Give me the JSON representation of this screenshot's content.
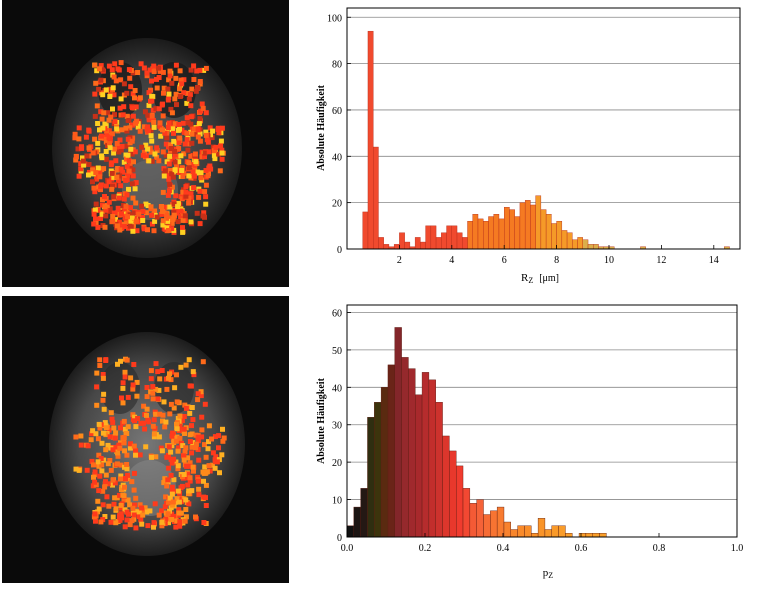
{
  "chart_data": [
    {
      "type": "bar",
      "xlabel": "R",
      "xlabel_sub": "Z",
      "xlabel_unit": "[μm]",
      "ylabel": "Absolute Häufigkeit",
      "xlim": [
        0,
        15
      ],
      "ylim": [
        0,
        104
      ],
      "xticks": [
        "2",
        "4",
        "6",
        "8",
        "10",
        "12",
        "14"
      ],
      "yticks": [
        "0",
        "20",
        "40",
        "60",
        "80",
        "100"
      ],
      "grid": "horizontal",
      "bin_width": 0.2,
      "bins": [
        {
          "x": 0.6,
          "v": 16
        },
        {
          "x": 0.8,
          "v": 94
        },
        {
          "x": 1.0,
          "v": 44
        },
        {
          "x": 1.2,
          "v": 5
        },
        {
          "x": 1.4,
          "v": 2
        },
        {
          "x": 1.6,
          "v": 1
        },
        {
          "x": 1.8,
          "v": 2
        },
        {
          "x": 2.0,
          "v": 7
        },
        {
          "x": 2.2,
          "v": 3
        },
        {
          "x": 2.4,
          "v": 1
        },
        {
          "x": 2.6,
          "v": 5
        },
        {
          "x": 2.8,
          "v": 3
        },
        {
          "x": 3.0,
          "v": 10
        },
        {
          "x": 3.2,
          "v": 10
        },
        {
          "x": 3.4,
          "v": 5
        },
        {
          "x": 3.6,
          "v": 7
        },
        {
          "x": 3.8,
          "v": 10
        },
        {
          "x": 4.0,
          "v": 10
        },
        {
          "x": 4.2,
          "v": 7
        },
        {
          "x": 4.4,
          "v": 5
        },
        {
          "x": 4.6,
          "v": 12
        },
        {
          "x": 4.8,
          "v": 15
        },
        {
          "x": 5.0,
          "v": 13
        },
        {
          "x": 5.2,
          "v": 12
        },
        {
          "x": 5.4,
          "v": 14
        },
        {
          "x": 5.6,
          "v": 15
        },
        {
          "x": 5.8,
          "v": 13
        },
        {
          "x": 6.0,
          "v": 18
        },
        {
          "x": 6.2,
          "v": 17
        },
        {
          "x": 6.4,
          "v": 14
        },
        {
          "x": 6.6,
          "v": 20
        },
        {
          "x": 6.8,
          "v": 21
        },
        {
          "x": 7.0,
          "v": 19
        },
        {
          "x": 7.2,
          "v": 23
        },
        {
          "x": 7.4,
          "v": 17
        },
        {
          "x": 7.6,
          "v": 15
        },
        {
          "x": 7.8,
          "v": 11
        },
        {
          "x": 8.0,
          "v": 12
        },
        {
          "x": 8.2,
          "v": 8
        },
        {
          "x": 8.4,
          "v": 7
        },
        {
          "x": 8.6,
          "v": 4
        },
        {
          "x": 8.8,
          "v": 5
        },
        {
          "x": 9.0,
          "v": 4
        },
        {
          "x": 9.2,
          "v": 2
        },
        {
          "x": 9.4,
          "v": 2
        },
        {
          "x": 9.6,
          "v": 1
        },
        {
          "x": 9.8,
          "v": 1
        },
        {
          "x": 10.0,
          "v": 1
        },
        {
          "x": 11.2,
          "v": 1
        },
        {
          "x": 14.4,
          "v": 1
        }
      ],
      "colors": {
        "dark": "#b82a22",
        "mid": "#f04a2e",
        "orange": "#f57a22",
        "yellow": "#dcae4a"
      }
    },
    {
      "type": "bar",
      "xlabel": "p",
      "xlabel_sub": "Z",
      "ylabel": "Absolute Häufigkeit",
      "xlim": [
        0,
        1.0
      ],
      "ylim": [
        0,
        62
      ],
      "xticks": [
        "0.0",
        "0.2",
        "0.4",
        "0.6",
        "0.8",
        "1.0"
      ],
      "yticks": [
        "0",
        "10",
        "20",
        "30",
        "40",
        "50",
        "60"
      ],
      "grid": "horizontal",
      "bin_width": 0.0175,
      "bins": [
        {
          "x": 0.0,
          "v": 3,
          "c": "#111111"
        },
        {
          "x": 0.0175,
          "v": 8,
          "c": "#1c1513"
        },
        {
          "x": 0.035,
          "v": 13,
          "c": "#241814"
        },
        {
          "x": 0.0525,
          "v": 32,
          "c": "#2f2e10"
        },
        {
          "x": 0.07,
          "v": 36,
          "c": "#3c340c"
        },
        {
          "x": 0.0875,
          "v": 40,
          "c": "#5a2a10"
        },
        {
          "x": 0.105,
          "v": 46,
          "c": "#6a2418"
        },
        {
          "x": 0.1225,
          "v": 56,
          "c": "#83262a"
        },
        {
          "x": 0.14,
          "v": 48,
          "c": "#95292c"
        },
        {
          "x": 0.1575,
          "v": 45,
          "c": "#a0292d"
        },
        {
          "x": 0.175,
          "v": 38,
          "c": "#a8292c"
        },
        {
          "x": 0.1925,
          "v": 44,
          "c": "#b52c2d"
        },
        {
          "x": 0.21,
          "v": 42,
          "c": "#c22e2c"
        },
        {
          "x": 0.2275,
          "v": 36,
          "c": "#cd322d"
        },
        {
          "x": 0.245,
          "v": 27,
          "c": "#dc362c"
        },
        {
          "x": 0.2625,
          "v": 23,
          "c": "#e8382c"
        },
        {
          "x": 0.28,
          "v": 19,
          "c": "#f03b2e"
        },
        {
          "x": 0.2975,
          "v": 13,
          "c": "#f24832"
        },
        {
          "x": 0.315,
          "v": 9,
          "c": "#f45a35"
        },
        {
          "x": 0.3325,
          "v": 10,
          "c": "#f56238"
        },
        {
          "x": 0.35,
          "v": 6,
          "c": "#f76c35"
        },
        {
          "x": 0.3675,
          "v": 7,
          "c": "#f77432"
        },
        {
          "x": 0.385,
          "v": 8,
          "c": "#f87b30"
        },
        {
          "x": 0.4025,
          "v": 4,
          "c": "#f8822e"
        },
        {
          "x": 0.42,
          "v": 2,
          "c": "#f8862c"
        },
        {
          "x": 0.4375,
          "v": 3,
          "c": "#f98a2a"
        },
        {
          "x": 0.455,
          "v": 3,
          "c": "#f98e2a"
        },
        {
          "x": 0.4725,
          "v": 1,
          "c": "#f9922a"
        },
        {
          "x": 0.49,
          "v": 5,
          "c": "#f99429"
        },
        {
          "x": 0.5075,
          "v": 2,
          "c": "#f99829"
        },
        {
          "x": 0.525,
          "v": 3,
          "c": "#f99a29"
        },
        {
          "x": 0.5425,
          "v": 3,
          "c": "#f99c29"
        },
        {
          "x": 0.56,
          "v": 1,
          "c": "#f99e29"
        },
        {
          "x": 0.595,
          "v": 1,
          "c": "#f99f29"
        },
        {
          "x": 0.6125,
          "v": 1,
          "c": "#f99f29"
        },
        {
          "x": 0.63,
          "v": 1,
          "c": "#f99f29"
        },
        {
          "x": 0.6475,
          "v": 1,
          "c": "#f99f29"
        }
      ]
    }
  ],
  "images": [
    {
      "name": "brain-axial-map-rz",
      "colors": [
        "#ff3a1c",
        "#ff6a1a",
        "#ffd021"
      ]
    },
    {
      "name": "brain-axial-map-pz",
      "colors": [
        "#ff3a1c",
        "#ff6a1a",
        "#ffd021"
      ]
    }
  ]
}
